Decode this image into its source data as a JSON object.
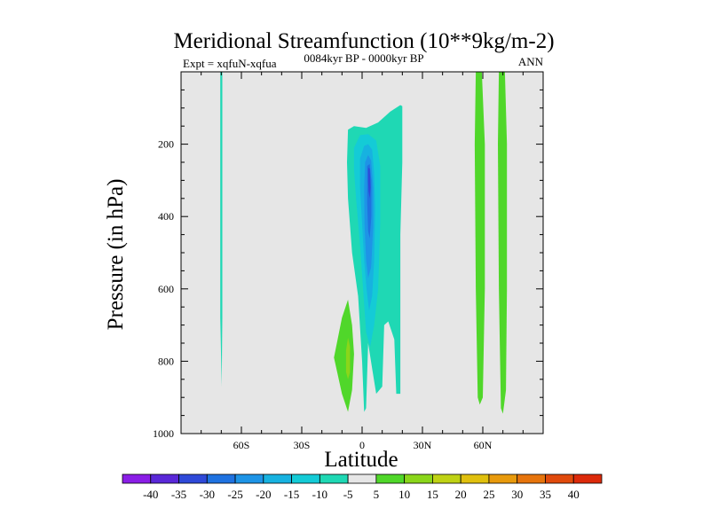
{
  "chart_data": {
    "type": "contour",
    "title": "Meridional Streamfunction (10**9kg/m-2)",
    "subtitle_left": "Expt = xqfuN-xqfua",
    "subtitle_center": "0084kyr BP - 0000kyr BP",
    "subtitle_right": "ANN",
    "xlabel": "Latitude",
    "ylabel": "Pressure (in hPa)",
    "xlim": [
      -90,
      90
    ],
    "ylim": [
      1000,
      0
    ],
    "x_ticks": [
      {
        "value": -60,
        "label": "60S"
      },
      {
        "value": -30,
        "label": "30S"
      },
      {
        "value": 0,
        "label": "0"
      },
      {
        "value": 30,
        "label": "30N"
      },
      {
        "value": 60,
        "label": "60N"
      }
    ],
    "y_ticks": [
      {
        "value": 200,
        "label": "200"
      },
      {
        "value": 400,
        "label": "400"
      },
      {
        "value": 600,
        "label": "600"
      },
      {
        "value": 800,
        "label": "800"
      },
      {
        "value": 1000,
        "label": "1000"
      }
    ],
    "colorbar_labels": [
      "-40",
      "-35",
      "-30",
      "-25",
      "-20",
      "-15",
      "-10",
      "-5",
      "5",
      "10",
      "15",
      "20",
      "25",
      "30",
      "35",
      "40"
    ],
    "colorbar_colors": [
      "#8a1ee6",
      "#5a28d8",
      "#2f49d8",
      "#1f72e0",
      "#1e94e6",
      "#17b2e0",
      "#14cbd6",
      "#1fd8b4",
      "#e6e6e6",
      "#50d72a",
      "#8ad61a",
      "#bfd214",
      "#e0c00e",
      "#e89a0c",
      "#e6740c",
      "#e04a0c",
      "#dc2a0a"
    ],
    "regions": [
      {
        "level": -5,
        "points": [
          [
            -70.5,
            0
          ],
          [
            -69.5,
            0
          ],
          [
            -69.5,
            680
          ],
          [
            -69.8,
            870
          ],
          [
            -70.5,
            680
          ]
        ]
      },
      {
        "level": -5,
        "points": [
          [
            -7,
            160
          ],
          [
            -4,
            150
          ],
          [
            2,
            155
          ],
          [
            8,
            140
          ],
          [
            14,
            110
          ],
          [
            19,
            92
          ],
          [
            20,
            95
          ],
          [
            20,
            250
          ],
          [
            19,
            450
          ],
          [
            19,
            700
          ],
          [
            19,
            890
          ],
          [
            17,
            890
          ],
          [
            16,
            740
          ],
          [
            13,
            690
          ],
          [
            11,
            700
          ],
          [
            10,
            870
          ],
          [
            7,
            890
          ],
          [
            5,
            820
          ],
          [
            3,
            750
          ],
          [
            2,
            930
          ],
          [
            1,
            940
          ],
          [
            0,
            800
          ],
          [
            -2,
            620
          ],
          [
            -5,
            500
          ],
          [
            -7,
            350
          ],
          [
            -7.5,
            250
          ]
        ]
      },
      {
        "level": -10,
        "points": [
          [
            -4,
            210
          ],
          [
            -1,
            175
          ],
          [
            3,
            172
          ],
          [
            7,
            190
          ],
          [
            9,
            260
          ],
          [
            9,
            420
          ],
          [
            8,
            600
          ],
          [
            6,
            700
          ],
          [
            4,
            760
          ],
          [
            2,
            720
          ],
          [
            0.5,
            600
          ],
          [
            -1,
            480
          ],
          [
            -3,
            350
          ],
          [
            -4,
            270
          ]
        ]
      },
      {
        "level": -15,
        "points": [
          [
            -1,
            240
          ],
          [
            1,
            205
          ],
          [
            3,
            200
          ],
          [
            5,
            215
          ],
          [
            6,
            280
          ],
          [
            6.5,
            380
          ],
          [
            6,
            520
          ],
          [
            5,
            620
          ],
          [
            3.5,
            660
          ],
          [
            2.2,
            600
          ],
          [
            1,
            520
          ],
          [
            0,
            420
          ],
          [
            -1,
            320
          ]
        ]
      },
      {
        "level": -20,
        "points": [
          [
            1.5,
            250
          ],
          [
            3,
            230
          ],
          [
            4.5,
            245
          ],
          [
            5.5,
            320
          ],
          [
            5.5,
            430
          ],
          [
            4.5,
            540
          ],
          [
            3,
            570
          ],
          [
            2,
            520
          ],
          [
            1.2,
            420
          ],
          [
            1,
            320
          ]
        ]
      },
      {
        "level": -25,
        "points": [
          [
            2.5,
            260
          ],
          [
            3.8,
            255
          ],
          [
            4.6,
            300
          ],
          [
            4.6,
            400
          ],
          [
            3.8,
            460
          ],
          [
            3,
            440
          ],
          [
            2.5,
            360
          ]
        ]
      },
      {
        "level": -30,
        "points": [
          [
            3,
            265
          ],
          [
            3.8,
            268
          ],
          [
            4.2,
            320
          ],
          [
            3.8,
            350
          ],
          [
            3.2,
            330
          ],
          [
            3,
            300
          ]
        ]
      },
      {
        "level": 5,
        "points": [
          [
            -14,
            790
          ],
          [
            -10,
            680
          ],
          [
            -7,
            630
          ],
          [
            -5,
            700
          ],
          [
            -4,
            780
          ],
          [
            -5,
            880
          ],
          [
            -7,
            940
          ],
          [
            -10,
            890
          ]
        ]
      },
      {
        "level": 10,
        "points": [
          [
            -7,
            735
          ],
          [
            -6,
            760
          ],
          [
            -6,
            830
          ],
          [
            -7,
            850
          ],
          [
            -8,
            830
          ],
          [
            -8,
            770
          ]
        ]
      },
      {
        "level": 5,
        "points": [
          [
            56.5,
            0
          ],
          [
            59.5,
            0
          ],
          [
            61,
            200
          ],
          [
            61,
            600
          ],
          [
            60,
            900
          ],
          [
            58.5,
            920
          ],
          [
            57.5,
            900
          ],
          [
            56.5,
            600
          ],
          [
            56,
            200
          ]
        ]
      },
      {
        "level": 5,
        "points": [
          [
            68,
            0
          ],
          [
            71,
            0
          ],
          [
            72,
            200
          ],
          [
            72,
            600
          ],
          [
            71.5,
            880
          ],
          [
            70,
            945
          ],
          [
            69,
            930
          ],
          [
            68,
            600
          ],
          [
            67.5,
            200
          ]
        ]
      }
    ]
  }
}
